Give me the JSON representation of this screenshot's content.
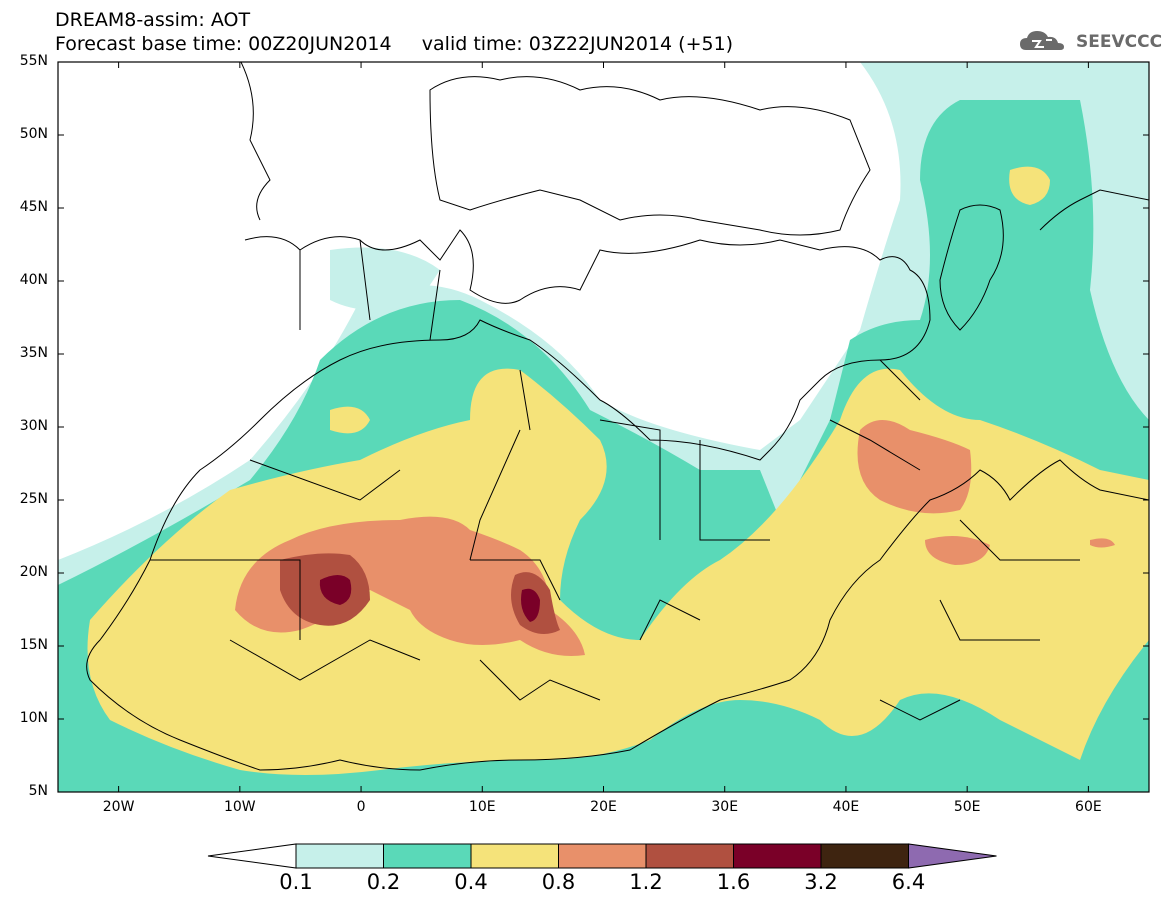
{
  "header": {
    "line1": "DREAM8-assim: AOT",
    "line2": "Forecast base time: 00Z20JUN2014     valid time: 03Z22JUN2014 (+51)"
  },
  "logo": {
    "text": "SEEVCCC",
    "icon": "cloud-icon"
  },
  "map": {
    "lat_labels": [
      "55N",
      "50N",
      "45N",
      "40N",
      "35N",
      "30N",
      "25N",
      "20N",
      "15N",
      "10N",
      "5N"
    ],
    "lon_labels": [
      "20W",
      "10W",
      "0",
      "10E",
      "20E",
      "30E",
      "40E",
      "50E",
      "60E"
    ],
    "lat_range": [
      5,
      55
    ],
    "lon_range": [
      -25,
      65
    ],
    "background": "#ffffff"
  },
  "colorbar": {
    "labels": [
      "0.1",
      "0.2",
      "0.4",
      "0.8",
      "1.2",
      "1.6",
      "3.2",
      "6.4"
    ],
    "colors": [
      "#ffffff",
      "#c6f0ea",
      "#5ad9b8",
      "#f5e37a",
      "#e8906a",
      "#b05040",
      "#7a0028",
      "#3e2410",
      "#8e6ab0"
    ]
  }
}
